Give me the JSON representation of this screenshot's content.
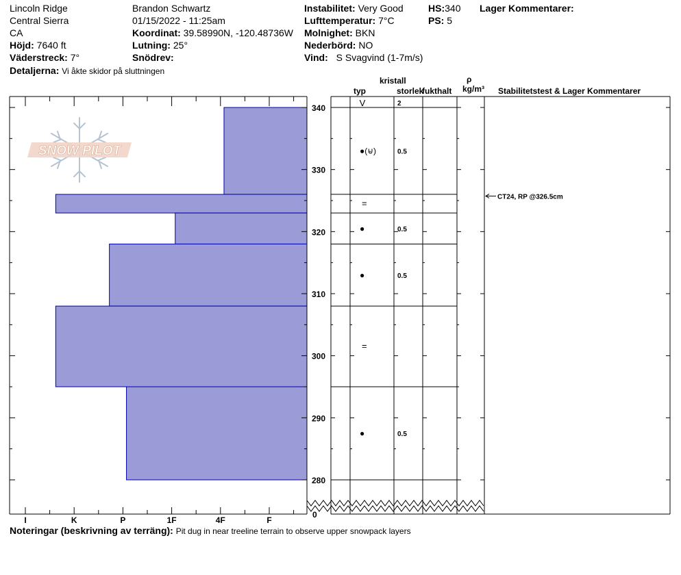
{
  "header": {
    "location": "Lincoln Ridge",
    "range": "Central Sierra",
    "state": "CA",
    "elevation_label": "Höjd:",
    "elevation_value": "7640 ft",
    "aspect_label": "Väderstreck:",
    "aspect_value": "7°",
    "details_label": "Detaljerna:",
    "details_value": "Vi åkte skidor på sluttningen",
    "observer": "Brandon Schwartz",
    "datetime": "01/15/2022 - 11:25am",
    "coord_label": "Koordinat:",
    "coord_value": "39.58990N, -120.48736W",
    "slope_label": "Lutning:",
    "slope_value": "25°",
    "snowdrift_label": "Snödrev:",
    "snowdrift_value": "",
    "instability_label": "Instabilitet:",
    "instability_value": "Very Good",
    "airtemp_label": "Lufttemperatur:",
    "airtemp_value": "7°C",
    "cloud_label": "Molnighet:",
    "cloud_value": "BKN",
    "precip_label": "Nederbörd:",
    "precip_value": "NO",
    "wind_label": "Vind:",
    "wind_value": "S Svagvind (1-7m/s)",
    "hs_label": "HS:",
    "hs_value": "340",
    "ps_label": "PS:",
    "ps_value": "5",
    "layer_comments_label": "Lager Kommentarer:"
  },
  "column_headers": {
    "crystal": "kristall",
    "type": "typ",
    "size": "storlek",
    "moisture": "fukthalt",
    "rho": "ρ",
    "density_unit": "kg/m³",
    "stability": "Stabilitetstest & Lager Kommentarer"
  },
  "logo_text": "SNOW PILOT",
  "notes_label": "Noteringar (beskrivning av terräng):",
  "notes_value": "Pit dug in near treeline terrain to observe upper snowpack layers",
  "colors": {
    "layer_fill": "#9b9bd7",
    "layer_stroke": "#0000aa"
  },
  "chart_data": {
    "type": "bar",
    "orientation": "horizontal",
    "y_axis": {
      "ticks": [
        280,
        290,
        300,
        310,
        320,
        330,
        340
      ],
      "range": [
        280,
        340
      ],
      "bottom_label": "0"
    },
    "hardness_scale": [
      "I",
      "K",
      "P",
      "1F",
      "4F",
      "F"
    ],
    "layers": [
      {
        "top": 340,
        "bottom": 326,
        "hardness": 1.7,
        "grain": "rounded-faceted",
        "grain_symbol": "●(⊌)",
        "size": "0.5"
      },
      {
        "top": 326,
        "bottom": 323,
        "hardness": 5.15,
        "grain": "crust",
        "grain_symbol": "=",
        "size": ""
      },
      {
        "top": 323,
        "bottom": 318,
        "hardness": 2.7,
        "grain": "rounded",
        "grain_symbol": "●",
        "size": "0.5"
      },
      {
        "top": 318,
        "bottom": 308,
        "hardness": 4.05,
        "grain": "rounded",
        "grain_symbol": "●",
        "size": "0.5"
      },
      {
        "top": 308,
        "bottom": 295,
        "hardness": 5.15,
        "grain": "crust",
        "grain_symbol": "=",
        "size": ""
      },
      {
        "top": 295,
        "bottom": 280,
        "hardness": 3.7,
        "grain": "rounded",
        "grain_symbol": "●",
        "size": "0.5"
      }
    ],
    "surface": {
      "grain_symbol": "V",
      "size": "2"
    },
    "stability_tests": [
      {
        "depth": 326.5,
        "label": "CT24, RP @326.5cm"
      }
    ]
  }
}
